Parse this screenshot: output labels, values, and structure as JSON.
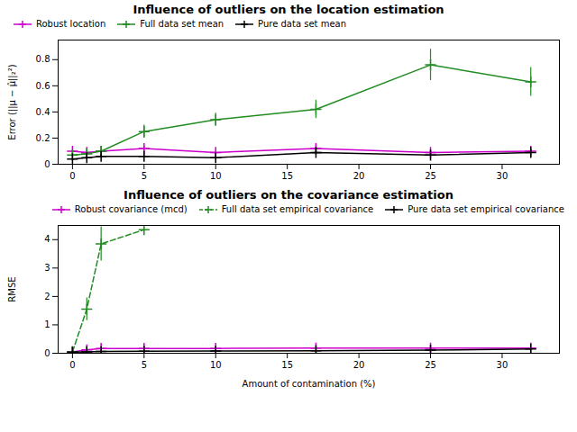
{
  "chart_data": [
    {
      "type": "line",
      "title": "Influence of outliers on the location estimation",
      "ylabel": "Error (||μ − μ̂||₂²)",
      "xlim": [
        -1,
        34
      ],
      "xticks": [
        0,
        5,
        10,
        15,
        20,
        25,
        30
      ],
      "ylim": [
        0,
        0.95
      ],
      "yticks": [
        0,
        0.2,
        0.4,
        0.6,
        0.8
      ],
      "grid": false,
      "legend": "upper left",
      "marker": "plus",
      "line_style": "solid",
      "x": [
        0,
        1,
        2,
        5,
        10,
        17,
        25,
        32
      ],
      "series": [
        {
          "name": "Robust location",
          "color": "#cc00cc",
          "values": [
            0.1,
            0.09,
            0.1,
            0.12,
            0.09,
            0.12,
            0.09,
            0.1
          ],
          "errors": [
            0.01,
            0.01,
            0.01,
            0.02,
            0.01,
            0.03,
            0.01,
            0.01
          ]
        },
        {
          "name": "Full data set mean",
          "color": "#228B22",
          "values": [
            0.07,
            0.08,
            0.1,
            0.25,
            0.34,
            0.42,
            0.76,
            0.63
          ],
          "errors": [
            0.01,
            0.01,
            0.01,
            0.05,
            0.05,
            0.07,
            0.12,
            0.11
          ]
        },
        {
          "name": "Pure data set mean",
          "color": "#000000",
          "values": [
            0.04,
            0.05,
            0.06,
            0.06,
            0.05,
            0.09,
            0.07,
            0.09
          ],
          "errors": [
            0.01,
            0.01,
            0.01,
            0.01,
            0.01,
            0.02,
            0.01,
            0.02
          ]
        }
      ]
    },
    {
      "type": "line",
      "title": "Influence of outliers on the covariance estimation",
      "xlabel": "Amount of contamination (%)",
      "ylabel": "RMSE",
      "xlim": [
        -1,
        34
      ],
      "xticks": [
        0,
        5,
        10,
        15,
        20,
        25,
        30
      ],
      "ylim": [
        0,
        4.5
      ],
      "yticks": [
        0,
        1,
        2,
        3,
        4
      ],
      "grid": false,
      "legend": "upper right",
      "marker": "plus",
      "line_style": "solid",
      "x": [
        0,
        1,
        2,
        5,
        10,
        17,
        25,
        32
      ],
      "series": [
        {
          "name": "Robust covariance (mcd)",
          "color": "#cc00cc",
          "values": [
            0.05,
            0.12,
            0.17,
            0.17,
            0.17,
            0.18,
            0.18,
            0.18
          ],
          "errors": [
            0.01,
            0.02,
            0.02,
            0.01,
            0.01,
            0.01,
            0.01,
            0.01
          ]
        },
        {
          "name": "Full data set empirical covariance",
          "color": "#228B22",
          "line_style": "dashed",
          "x": [
            0,
            1,
            2,
            5
          ],
          "values": [
            0.05,
            1.55,
            3.85,
            4.35
          ],
          "errors": [
            0.05,
            0.4,
            0.6,
            0.0
          ]
        },
        {
          "name": "Pure data set empirical covariance",
          "color": "#000000",
          "values": [
            0.04,
            0.05,
            0.06,
            0.07,
            0.08,
            0.09,
            0.11,
            0.15
          ],
          "errors": [
            0.005,
            0.005,
            0.005,
            0.005,
            0.005,
            0.005,
            0.005,
            0.01
          ]
        }
      ]
    }
  ]
}
